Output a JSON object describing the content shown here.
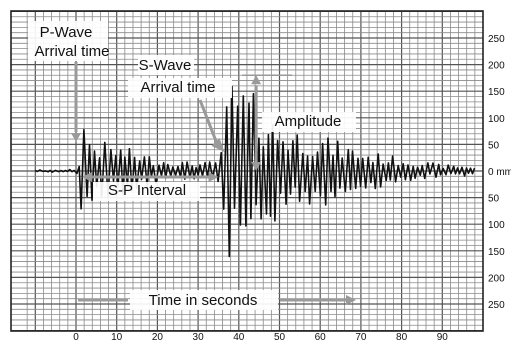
{
  "labels": {
    "p_wave": [
      "P-Wave",
      "Arrival time"
    ],
    "s_wave": [
      "S-Wave",
      "Arrival time"
    ],
    "amplitude": "Amplitude",
    "sp_interval": "S-P Interval",
    "time_axis": "Time in seconds",
    "zero_unit": "0 mm"
  },
  "x_ticks": [
    "0",
    "10",
    "20",
    "30",
    "40",
    "50",
    "60",
    "70",
    "80",
    "90"
  ],
  "y_ticks": [
    "250",
    "200",
    "150",
    "100",
    "50",
    "0 mm",
    "50",
    "100",
    "150",
    "200",
    "250"
  ],
  "chart_data": {
    "type": "line",
    "x_unit": "seconds",
    "y_unit": "mm",
    "xlim": [
      -10,
      100
    ],
    "ylim": [
      -300,
      300
    ],
    "p_wave_arrival_s": 1,
    "s_wave_arrival_s": 36,
    "sp_interval_s": 35,
    "max_amplitude_mm": 180,
    "trace_envelope": [
      {
        "x": -10,
        "amp": 2
      },
      {
        "x": 0,
        "amp": 3
      },
      {
        "x": 1,
        "amp": 120
      },
      {
        "x": 4,
        "amp": 60
      },
      {
        "x": 10,
        "amp": 50
      },
      {
        "x": 20,
        "amp": 25
      },
      {
        "x": 30,
        "amp": 15
      },
      {
        "x": 35,
        "amp": 20
      },
      {
        "x": 38,
        "amp": 180
      },
      {
        "x": 42,
        "amp": 160
      },
      {
        "x": 50,
        "amp": 90
      },
      {
        "x": 60,
        "amp": 70
      },
      {
        "x": 70,
        "amp": 40
      },
      {
        "x": 80,
        "amp": 25
      },
      {
        "x": 90,
        "amp": 12
      },
      {
        "x": 100,
        "amp": 8
      }
    ]
  }
}
